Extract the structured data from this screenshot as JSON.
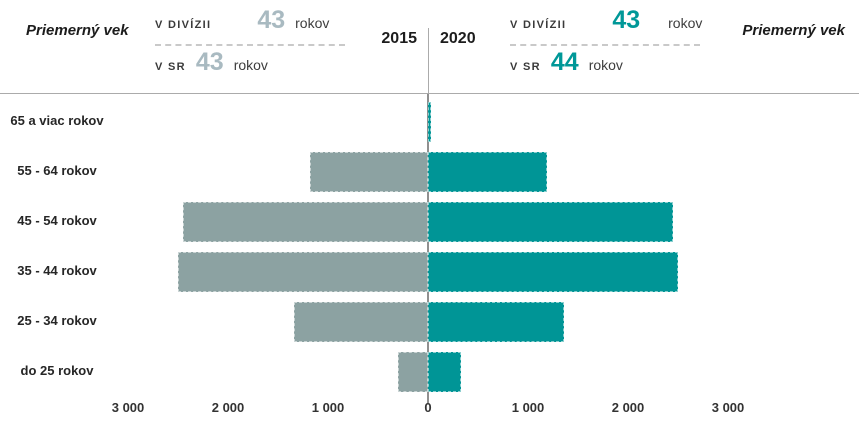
{
  "header": {
    "left_title": "Priemerný vek",
    "right_title": "Priemerný vek",
    "year_left": "2015",
    "year_right": "2020",
    "left_stats": {
      "division_label": "V DIVÍZII",
      "division_value": "43",
      "division_unit": "rokov",
      "sr_label": "V SR",
      "sr_value": "43",
      "sr_unit": "rokov"
    },
    "right_stats": {
      "division_label": "V DIVÍZII",
      "division_value": "43",
      "division_unit": "rokov",
      "sr_label": "V SR",
      "sr_value": "44",
      "sr_unit": "rokov"
    }
  },
  "colors": {
    "bar_2015": "#8ca2a2",
    "bar_2020": "#009596",
    "muted_number": "#a9bac1",
    "teal_number": "#009898",
    "axis_line": "#8f8f8f",
    "header_rule": "#ababab"
  },
  "chart_data": {
    "type": "bar",
    "subtype": "population-pyramid",
    "orientation": "horizontal",
    "title": "",
    "categories": [
      "65 a viac rokov",
      "55 - 64 rokov",
      "45 - 54 rokov",
      "35 - 44 rokov",
      "25 - 34 rokov",
      "do 25 rokov"
    ],
    "series": [
      {
        "name": "2015",
        "side": "left",
        "color": "#8ca2a2",
        "values": [
          0,
          1180,
          2450,
          2500,
          1340,
          300
        ]
      },
      {
        "name": "2020",
        "side": "right",
        "color": "#009596",
        "values": [
          30,
          1190,
          2450,
          2500,
          1360,
          330
        ]
      }
    ],
    "xlim": [
      -3000,
      3000
    ],
    "grid": false,
    "legend_position": "none",
    "x_ticks": [
      {
        "value": -3000,
        "label": "3 000"
      },
      {
        "value": -2000,
        "label": "2 000"
      },
      {
        "value": -1000,
        "label": "1 000"
      },
      {
        "value": 0,
        "label": "0"
      },
      {
        "value": 1000,
        "label": "1 000"
      },
      {
        "value": 2000,
        "label": "2 000"
      },
      {
        "value": 3000,
        "label": "3 000"
      }
    ]
  }
}
